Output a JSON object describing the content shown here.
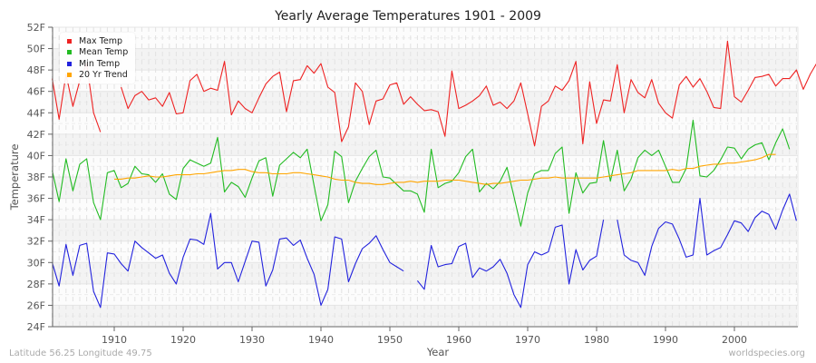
{
  "header": {
    "title": "Yearly Average Temperatures 1901 - 2009"
  },
  "axes": {
    "ylabel": "Temperature",
    "xlabel": "Year",
    "y_ticks": [
      "24F",
      "26F",
      "28F",
      "30F",
      "32F",
      "34F",
      "36F",
      "38F",
      "40F",
      "42F",
      "44F",
      "46F",
      "48F",
      "50F",
      "52F"
    ],
    "x_ticks": [
      "1910",
      "1920",
      "1930",
      "1940",
      "1950",
      "1960",
      "1970",
      "1980",
      "1990",
      "2000"
    ]
  },
  "legend": {
    "items": [
      {
        "label": "Max Temp",
        "color": "#ee2222"
      },
      {
        "label": "Mean Temp",
        "color": "#22bb22"
      },
      {
        "label": "Min Temp",
        "color": "#2222dd"
      },
      {
        "label": "20 Yr Trend",
        "color": "#ffa500"
      }
    ]
  },
  "footer": {
    "location": "Latitude 56.25 Longitude 49.75",
    "source": "worldspecies.org"
  },
  "chart_data": {
    "type": "line",
    "title": "Yearly Average Temperatures 1901 - 2009",
    "xlabel": "Year",
    "ylabel": "Temperature",
    "ylim": [
      24,
      52
    ],
    "xlim": [
      1901,
      2009
    ],
    "grid": true,
    "legend_position": "top-left inside",
    "x_start": 1901,
    "series": [
      {
        "name": "Max Temp",
        "color": "#ee2222",
        "values": [
          47.2,
          43.4,
          47.6,
          44.6,
          47.0,
          48.6,
          44.0,
          42.2,
          null,
          null,
          46.4,
          44.4,
          45.6,
          46.0,
          45.2,
          45.4,
          44.6,
          45.9,
          43.9,
          44.0,
          47.0,
          47.6,
          46.0,
          46.3,
          46.1,
          48.8,
          43.8,
          45.1,
          44.4,
          44.0,
          45.4,
          46.7,
          47.4,
          47.8,
          44.1,
          47.0,
          47.1,
          48.4,
          47.7,
          48.6,
          46.4,
          45.9,
          41.3,
          42.7,
          46.8,
          46.0,
          42.9,
          45.1,
          45.3,
          46.6,
          46.8,
          44.8,
          45.5,
          44.8,
          44.2,
          44.3,
          44.1,
          41.8,
          47.9,
          44.4,
          44.7,
          45.1,
          45.6,
          46.5,
          44.7,
          45.0,
          44.4,
          45.1,
          46.8,
          43.9,
          40.9,
          44.6,
          45.1,
          46.5,
          46.1,
          47.0,
          48.8,
          41.1,
          46.9,
          43.0,
          45.2,
          45.1,
          48.5,
          44.0,
          47.1,
          45.9,
          45.4,
          47.1,
          44.9,
          44.0,
          43.5,
          46.6,
          47.4,
          46.4,
          47.2,
          46.0,
          44.5,
          44.4,
          50.7,
          45.5,
          45.0,
          46.1,
          47.3,
          47.4,
          47.6,
          46.5,
          47.2,
          47.2,
          48.0,
          46.2,
          47.6,
          48.7,
          47.3
        ],
        "note": "approximate readings; gap 1909-1910"
      },
      {
        "name": "Mean Temp",
        "color": "#22bb22",
        "values": [
          38.6,
          35.7,
          39.7,
          36.7,
          39.2,
          39.7,
          35.6,
          34.0,
          38.4,
          38.6,
          37.0,
          37.4,
          39.0,
          38.3,
          38.2,
          37.5,
          38.3,
          36.4,
          35.9,
          38.8,
          39.6,
          39.3,
          39.0,
          39.3,
          41.7,
          36.6,
          37.5,
          37.1,
          36.1,
          37.9,
          39.5,
          39.8,
          36.2,
          39.1,
          39.7,
          40.3,
          39.8,
          40.6,
          37.2,
          33.9,
          35.4,
          40.4,
          39.9,
          35.6,
          37.6,
          38.8,
          39.9,
          40.5,
          38.0,
          37.9,
          37.3,
          36.7,
          36.7,
          36.4,
          34.7,
          40.6,
          37.0,
          37.4,
          37.6,
          38.4,
          39.9,
          40.6,
          36.6,
          37.4,
          36.9,
          37.6,
          38.9,
          36.2,
          33.4,
          36.5,
          38.3,
          38.6,
          38.6,
          40.2,
          40.8,
          34.6,
          38.4,
          36.5,
          37.4,
          37.5,
          41.4,
          37.6,
          40.5,
          36.7,
          37.8,
          39.8,
          40.5,
          40.0,
          40.5,
          39.0,
          37.5,
          37.5,
          38.8,
          43.3,
          38.1,
          38.0,
          38.6,
          39.6,
          40.8,
          40.7,
          39.7,
          40.6,
          41.0,
          41.2,
          39.6,
          41.2,
          42.5,
          40.6
        ],
        "note": "approximate; 108 of 109 points read"
      },
      {
        "name": "Min Temp",
        "color": "#2222dd",
        "values": [
          30.0,
          27.8,
          31.7,
          28.8,
          31.6,
          31.8,
          27.3,
          25.8,
          30.9,
          30.8,
          29.9,
          29.2,
          32.0,
          31.4,
          30.9,
          30.4,
          30.7,
          29.0,
          28.0,
          30.5,
          32.2,
          32.1,
          31.7,
          34.6,
          29.4,
          30.0,
          30.0,
          28.2,
          30.1,
          32.0,
          31.9,
          27.8,
          29.3,
          32.2,
          32.3,
          31.6,
          32.1,
          30.4,
          28.9,
          26.0,
          27.5,
          32.4,
          32.2,
          28.2,
          29.9,
          31.3,
          31.8,
          32.5,
          31.2,
          30.0,
          29.6,
          29.2,
          null,
          28.3,
          27.5,
          31.6,
          29.6,
          29.8,
          29.9,
          31.5,
          31.8,
          28.6,
          29.5,
          29.2,
          29.6,
          30.3,
          29.0,
          27.0,
          25.8,
          29.8,
          31.0,
          30.7,
          31.0,
          33.3,
          33.5,
          28.0,
          31.2,
          29.3,
          30.2,
          30.6,
          34.0,
          null,
          34.0,
          30.7,
          30.2,
          30.0,
          28.8,
          31.5,
          33.2,
          33.8,
          33.6,
          32.2,
          30.5,
          30.7,
          36.0,
          30.7,
          31.1,
          31.4,
          32.6,
          33.9,
          33.7,
          32.9,
          34.2,
          34.8,
          34.5,
          33.1,
          34.9,
          36.4,
          33.9
        ],
        "note": "approximate; gaps around 1953 and 1982"
      },
      {
        "name": "20 Yr Trend",
        "color": "#ffa500",
        "x_start": 1910,
        "values": [
          37.8,
          37.8,
          37.9,
          37.9,
          38.0,
          38.1,
          38.0,
          38.0,
          38.1,
          38.2,
          38.2,
          38.2,
          38.3,
          38.3,
          38.4,
          38.5,
          38.6,
          38.6,
          38.7,
          38.7,
          38.5,
          38.4,
          38.4,
          38.3,
          38.3,
          38.3,
          38.4,
          38.4,
          38.3,
          38.2,
          38.1,
          38.0,
          37.8,
          37.7,
          37.7,
          37.5,
          37.4,
          37.4,
          37.3,
          37.3,
          37.4,
          37.5,
          37.5,
          37.6,
          37.5,
          37.6,
          37.6,
          37.6,
          37.7,
          37.7,
          37.7,
          37.6,
          37.5,
          37.4,
          37.3,
          37.4,
          37.4,
          37.5,
          37.6,
          37.7,
          37.7,
          37.8,
          37.9,
          37.9,
          38.0,
          37.9,
          37.9,
          37.9,
          37.9,
          37.9,
          37.9,
          38.0,
          38.1,
          38.2,
          38.3,
          38.4,
          38.6,
          38.6,
          38.6,
          38.6,
          38.6,
          38.7,
          38.6,
          38.8,
          38.8,
          39.0,
          39.1,
          39.2,
          39.2,
          39.3,
          39.3,
          39.4,
          39.5,
          39.6,
          39.8,
          40.1,
          40.1
        ]
      }
    ]
  }
}
